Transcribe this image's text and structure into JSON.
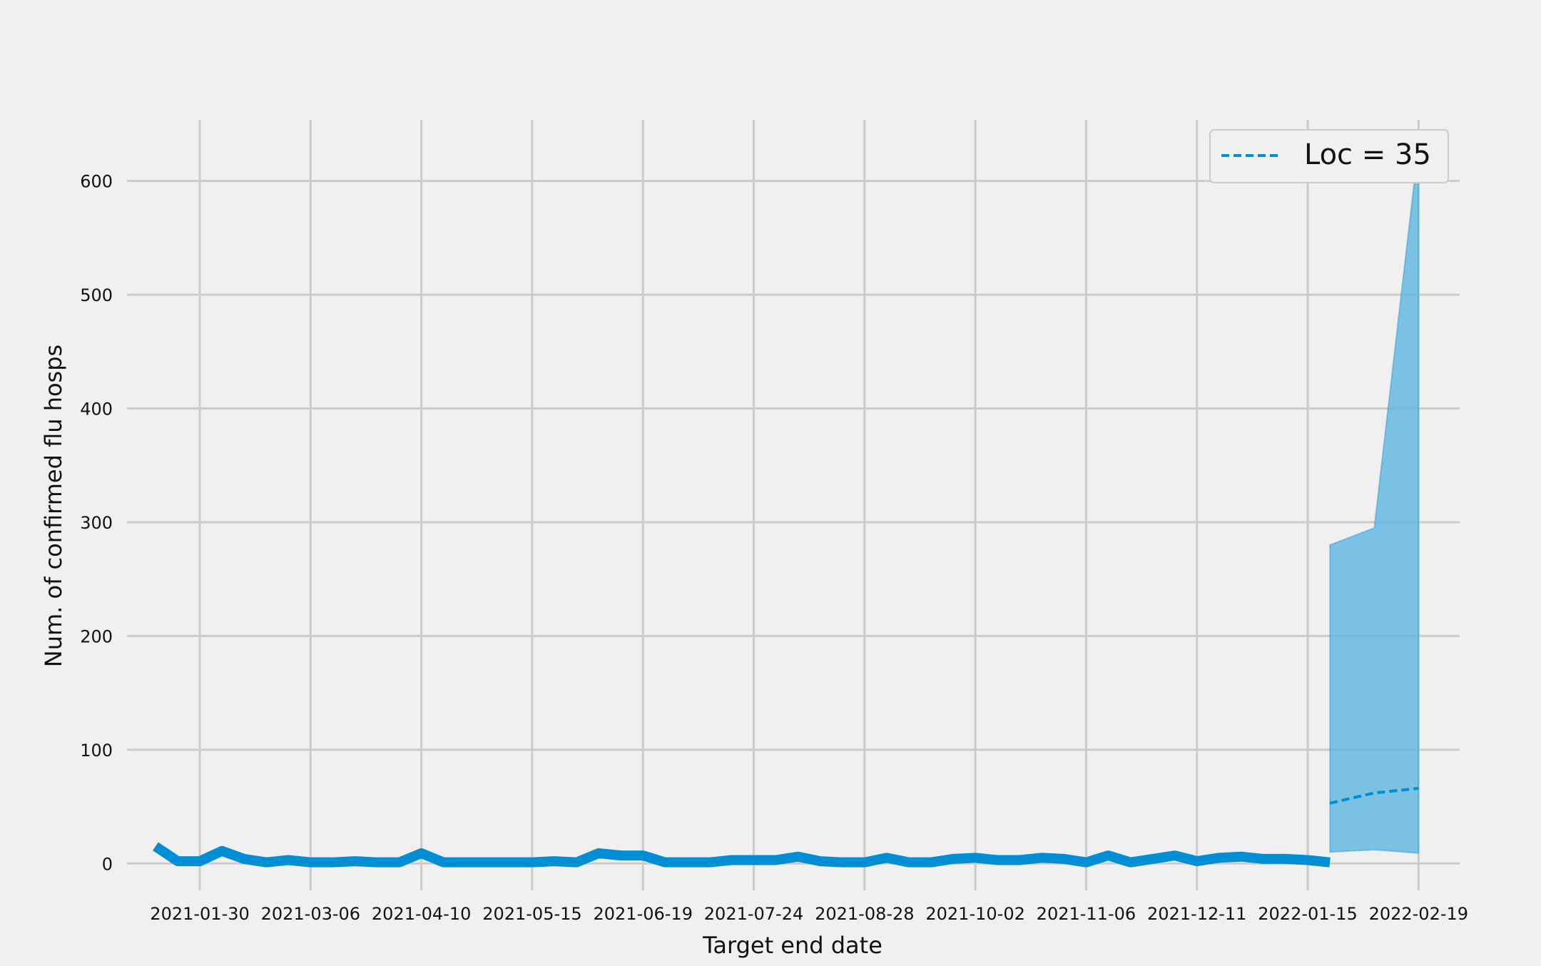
{
  "chart_data": {
    "type": "line",
    "title": "",
    "xlabel": "Target end date",
    "ylabel": "Num. of confirmed flu hosps",
    "x_tick_labels": [
      "2021-01-30",
      "2021-03-06",
      "2021-04-10",
      "2021-05-15",
      "2021-06-19",
      "2021-07-24",
      "2021-08-28",
      "2021-10-02",
      "2021-11-06",
      "2021-12-11",
      "2022-01-15",
      "2022-02-19"
    ],
    "y_tick_labels": [
      "0",
      "100",
      "200",
      "300",
      "400",
      "500",
      "600"
    ],
    "ylim": [
      -50,
      665
    ],
    "xlim": [
      "2021-01-07",
      "2022-03-04"
    ],
    "grid": true,
    "legend": {
      "position": "top-right",
      "entries": [
        "Loc = 35"
      ]
    },
    "colors": {
      "line": "#008fd5",
      "band": "#66b8e0",
      "grid": "#cbcbcb",
      "background": "#f0f0f0"
    },
    "series": [
      {
        "style": "solid",
        "x": [
          "2021-01-16",
          "2021-01-23",
          "2021-01-30",
          "2021-02-06",
          "2021-02-13",
          "2021-02-20",
          "2021-02-27",
          "2021-03-06",
          "2021-03-13",
          "2021-03-20",
          "2021-03-27",
          "2021-04-03",
          "2021-04-10",
          "2021-04-17",
          "2021-04-24",
          "2021-05-01",
          "2021-05-08",
          "2021-05-15",
          "2021-05-22",
          "2021-05-29",
          "2021-06-05",
          "2021-06-12",
          "2021-06-19",
          "2021-06-26",
          "2021-07-03",
          "2021-07-10",
          "2021-07-17",
          "2021-07-24",
          "2021-07-31",
          "2021-08-07",
          "2021-08-14",
          "2021-08-21",
          "2021-08-28",
          "2021-09-04",
          "2021-09-11",
          "2021-09-18",
          "2021-09-25",
          "2021-10-02",
          "2021-10-09",
          "2021-10-16",
          "2021-10-23",
          "2021-10-30",
          "2021-11-06",
          "2021-11-13",
          "2021-11-20",
          "2021-11-27",
          "2021-12-04",
          "2021-12-11",
          "2021-12-18",
          "2021-12-25",
          "2022-01-01",
          "2022-01-08",
          "2022-01-15",
          "2022-01-22"
        ],
        "values": [
          15,
          2,
          2,
          11,
          4,
          1,
          3,
          1,
          1,
          2,
          1,
          1,
          9,
          1,
          1,
          1,
          1,
          1,
          2,
          1,
          9,
          7,
          7,
          1,
          1,
          1,
          3,
          3,
          3,
          6,
          2,
          1,
          1,
          5,
          1,
          1,
          4,
          5,
          3,
          3,
          5,
          4,
          1,
          7,
          1,
          4,
          7,
          2,
          5,
          6,
          4,
          4,
          3,
          1
        ]
      },
      {
        "name": "Loc = 35",
        "style": "dashed",
        "x": [
          "2022-01-22",
          "2022-02-05",
          "2022-02-19"
        ],
        "values": [
          53,
          62,
          66
        ],
        "lower": [
          10,
          12,
          9
        ],
        "upper": [
          280,
          295,
          632
        ]
      }
    ]
  }
}
